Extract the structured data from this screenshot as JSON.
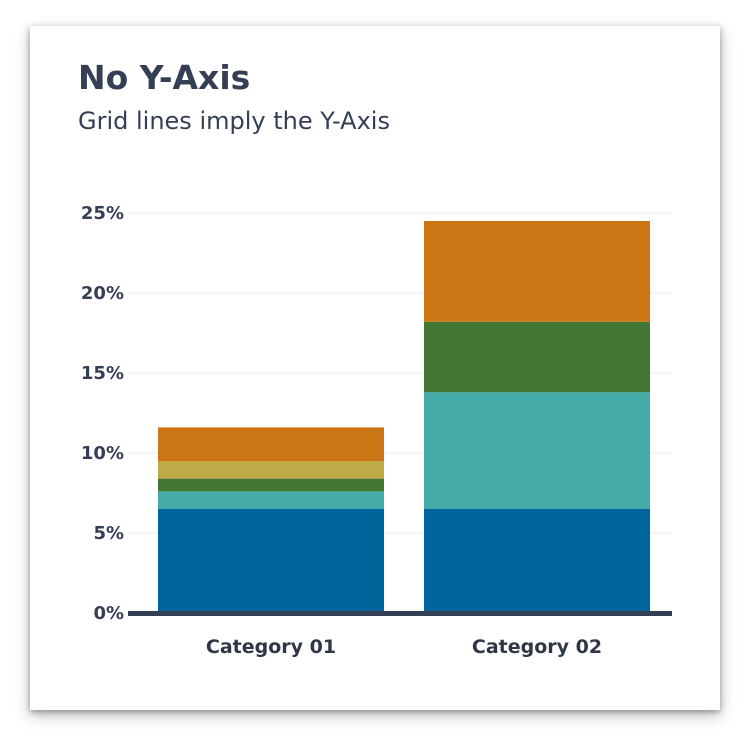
{
  "title": "No Y-Axis",
  "subtitle": "Grid lines imply the Y-Axis",
  "colors": {
    "text": "#343f55",
    "grid": "#e6e8ec",
    "baseline": "#343f55",
    "segments": [
      "#00659b",
      "#44aba8",
      "#447634",
      "#bfab48",
      "#cb7514"
    ]
  },
  "chart_data": {
    "type": "bar",
    "stacked": true,
    "title": "No Y-Axis",
    "subtitle": "Grid lines imply the Y-Axis",
    "xlabel": "",
    "ylabel": "",
    "ylim": [
      0,
      25
    ],
    "y_ticks": [
      "0%",
      "5%",
      "10%",
      "15%",
      "20%",
      "25%"
    ],
    "y_tick_values": [
      0,
      5,
      10,
      15,
      20,
      25
    ],
    "grid": true,
    "legend": "none",
    "categories": [
      "Category 01",
      "Category 02"
    ],
    "series": [
      {
        "color": "#00659b",
        "values": [
          6.5,
          6.5
        ]
      },
      {
        "color": "#44aba8",
        "values": [
          1.1,
          7.3
        ]
      },
      {
        "color": "#447634",
        "values": [
          0.8,
          4.4
        ]
      },
      {
        "color": "#bfab48",
        "values": [
          1.1,
          0
        ]
      },
      {
        "color": "#cb7514",
        "values": [
          2.1,
          6.3
        ]
      }
    ]
  }
}
